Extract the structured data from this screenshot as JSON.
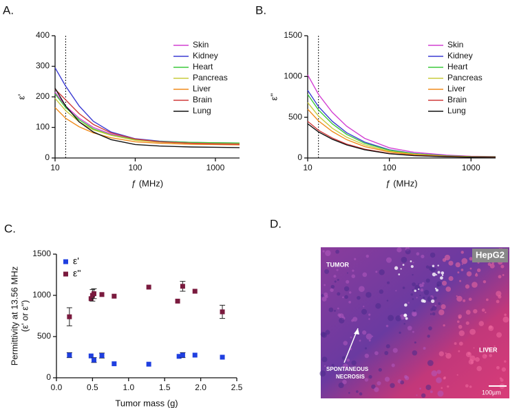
{
  "chart_data": [
    {
      "type": "line",
      "panel": "A.",
      "xlabel": "ƒ (MHz)",
      "ylabel": "ε'",
      "log_x": true,
      "marker_x": 13.56,
      "x": [
        10,
        13.56,
        20,
        30,
        50,
        100,
        200,
        500,
        1000,
        2000
      ],
      "xlim": [
        10,
        2000
      ],
      "xticks": [
        10,
        100,
        1000
      ],
      "ylim": [
        0,
        400
      ],
      "yticks": [
        0,
        100,
        200,
        300,
        400
      ],
      "series": [
        {
          "name": "Skin",
          "color": "#d23fd2",
          "values": [
            215,
            170,
            130,
            100,
            78,
            60,
            53,
            50,
            49,
            48
          ]
        },
        {
          "name": "Kidney",
          "color": "#3a3ad2",
          "values": [
            295,
            235,
            170,
            120,
            85,
            63,
            55,
            51,
            50,
            49
          ]
        },
        {
          "name": "Heart",
          "color": "#3cc83c",
          "values": [
            210,
            165,
            125,
            95,
            75,
            60,
            54,
            51,
            50,
            49
          ]
        },
        {
          "name": "Pancreas",
          "color": "#c8cc3c",
          "values": [
            195,
            155,
            118,
            92,
            74,
            58,
            52,
            48,
            47,
            46
          ]
        },
        {
          "name": "Liver",
          "color": "#f08a1a",
          "values": [
            165,
            130,
            102,
            82,
            66,
            53,
            48,
            45,
            44,
            43
          ]
        },
        {
          "name": "Brain",
          "color": "#d03a3a",
          "values": [
            225,
            190,
            145,
            110,
            82,
            62,
            53,
            48,
            46,
            45
          ]
        },
        {
          "name": "Lung",
          "color": "#111111",
          "values": [
            228,
            170,
            118,
            85,
            60,
            44,
            39,
            36,
            35,
            34
          ]
        }
      ]
    },
    {
      "type": "line",
      "panel": "B.",
      "xlabel": "ƒ (MHz)",
      "ylabel": "ε''",
      "log_x": true,
      "marker_x": 13.56,
      "x": [
        10,
        13.56,
        20,
        30,
        50,
        100,
        200,
        500,
        1000,
        2000
      ],
      "xlim": [
        10,
        2000
      ],
      "xticks": [
        10,
        100,
        1000
      ],
      "ylim": [
        0,
        1500
      ],
      "yticks": [
        0,
        500,
        1000,
        1500
      ],
      "series": [
        {
          "name": "Skin",
          "color": "#d23fd2",
          "values": [
            1020,
            780,
            560,
            390,
            240,
            125,
            70,
            35,
            22,
            18
          ]
        },
        {
          "name": "Kidney",
          "color": "#3a3ad2",
          "values": [
            830,
            630,
            450,
            310,
            195,
            100,
            56,
            28,
            18,
            15
          ]
        },
        {
          "name": "Heart",
          "color": "#3cc83c",
          "values": [
            780,
            590,
            420,
            290,
            180,
            95,
            52,
            26,
            17,
            14
          ]
        },
        {
          "name": "Pancreas",
          "color": "#c8cc3c",
          "values": [
            680,
            515,
            365,
            255,
            160,
            83,
            46,
            23,
            15,
            12
          ]
        },
        {
          "name": "Liver",
          "color": "#f08a1a",
          "values": [
            600,
            455,
            325,
            225,
            140,
            73,
            40,
            20,
            13,
            11
          ]
        },
        {
          "name": "Brain",
          "color": "#d03a3a",
          "values": [
            450,
            340,
            245,
            170,
            108,
            56,
            31,
            16,
            10,
            8
          ]
        },
        {
          "name": "Lung",
          "color": "#111111",
          "values": [
            420,
            320,
            230,
            160,
            100,
            52,
            29,
            15,
            10,
            8
          ]
        }
      ]
    },
    {
      "type": "scatter",
      "panel": "C.",
      "xlabel": "Tumor mass (g)",
      "ylabel": [
        "Permittivity at 13.56 MHz",
        "(ε' or ε'')"
      ],
      "xlim": [
        0,
        2.5
      ],
      "xticks": [
        {
          "value": 0,
          "label": "0.0"
        },
        0.5,
        {
          "value": 1,
          "label": "1.0"
        },
        1.5,
        {
          "value": 2,
          "label": "2.0"
        },
        2.5
      ],
      "ylim": [
        0,
        1500
      ],
      "yticks": [
        0,
        500,
        1000,
        1500
      ],
      "series": [
        {
          "name": "ε'",
          "color": "#1f3fe0",
          "x": [
            0.18,
            0.48,
            0.52,
            0.63,
            0.8,
            1.28,
            1.7,
            1.75,
            1.92,
            2.3
          ],
          "values": [
            275,
            265,
            215,
            270,
            170,
            165,
            260,
            275,
            275,
            250
          ],
          "errors": [
            30,
            null,
            30,
            30,
            null,
            null,
            null,
            30,
            null,
            null
          ]
        },
        {
          "name": "ε''",
          "color": "#7a1a3e",
          "x": [
            0.18,
            0.48,
            0.5,
            0.52,
            0.63,
            0.8,
            1.28,
            1.68,
            1.75,
            1.92,
            2.3
          ],
          "values": [
            740,
            960,
            1000,
            1020,
            1010,
            990,
            1100,
            930,
            1110,
            1050,
            800
          ],
          "errors": [
            110,
            null,
            70,
            60,
            null,
            null,
            null,
            null,
            60,
            null,
            80
          ]
        }
      ]
    }
  ],
  "image": {
    "panel": "D.",
    "tag": "HepG2",
    "tumor": "TUMOR",
    "necrosis": [
      "SPONTANEOUS",
      "NECROSIS"
    ],
    "liver": "LIVER",
    "scale": "100µm"
  }
}
